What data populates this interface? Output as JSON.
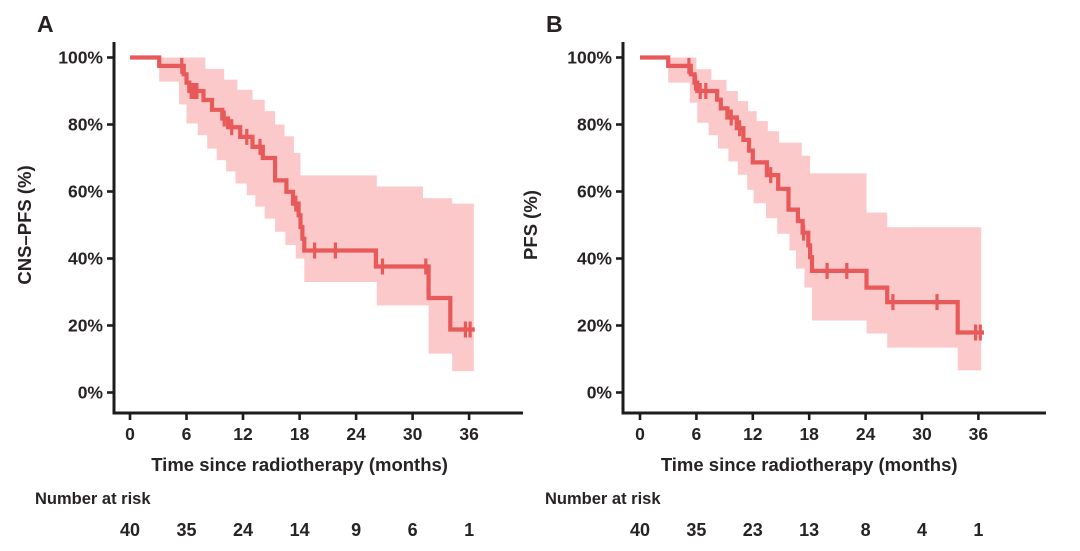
{
  "figure": {
    "curve_color": "#e8595a",
    "band_color": "#fbc9c9",
    "axis_color": "#1c1c1c",
    "text_color": "#272324"
  },
  "chart_data": [
    {
      "type": "line",
      "subtype": "kaplan-meier-step",
      "panel_label": "A",
      "ylabel": "CNS–PFS (%)",
      "xlabel": "Time since radiotherapy (months)",
      "x_ticks": [
        0,
        6,
        12,
        18,
        24,
        30,
        36
      ],
      "y_tick_values": [
        0,
        20,
        40,
        60,
        80,
        100
      ],
      "y_tick_labels": [
        "0%",
        "20%",
        "40%",
        "60%",
        "80%",
        "100%"
      ],
      "xlim": [
        0,
        41
      ],
      "ylim": [
        0,
        100
      ],
      "grid": false,
      "legend": "none",
      "end_time": 36.6,
      "ci_end_time": 36.5,
      "steps": [
        [
          0,
          100
        ],
        [
          3.1,
          97.5
        ],
        [
          5.7,
          95
        ],
        [
          6.0,
          92.5
        ],
        [
          6.3,
          90
        ],
        [
          7.8,
          87.3
        ],
        [
          8.7,
          84.4
        ],
        [
          9.8,
          81.8
        ],
        [
          10.4,
          79.2
        ],
        [
          11.7,
          76.3
        ],
        [
          13.0,
          73.3
        ],
        [
          14.1,
          70.0
        ],
        [
          15.4,
          63.3
        ],
        [
          16.6,
          59.9
        ],
        [
          17.3,
          56.4
        ],
        [
          17.9,
          52.9
        ],
        [
          18.1,
          49.4
        ],
        [
          18.3,
          45.9
        ],
        [
          18.5,
          42.4
        ],
        [
          26.1,
          37.6
        ],
        [
          31.7,
          28.2
        ],
        [
          34.0,
          18.8
        ]
      ],
      "censors": [
        [
          5.5,
          97.5
        ],
        [
          6.5,
          90
        ],
        [
          6.8,
          90
        ],
        [
          7.1,
          90
        ],
        [
          10.0,
          81.8
        ],
        [
          10.8,
          79.2
        ],
        [
          12.4,
          76.3
        ],
        [
          13.8,
          73.3
        ],
        [
          17.6,
          56.4
        ],
        [
          19.6,
          42.4
        ],
        [
          21.8,
          42.4
        ],
        [
          26.8,
          37.6
        ],
        [
          31.4,
          37.6
        ],
        [
          35.6,
          18.8
        ],
        [
          36.1,
          18.8
        ]
      ],
      "ci_upper": [
        [
          3.1,
          100
        ],
        [
          8.0,
          96.6
        ],
        [
          10.0,
          93.4
        ],
        [
          11.4,
          90.4
        ],
        [
          13.0,
          87.4
        ],
        [
          14.3,
          84
        ],
        [
          15.4,
          80
        ],
        [
          16.4,
          76.5
        ],
        [
          17.4,
          71.5
        ],
        [
          18.1,
          64.8
        ],
        [
          26.2,
          61.5
        ],
        [
          31.1,
          58
        ],
        [
          34.2,
          56.4
        ]
      ],
      "ci_lower": [
        [
          3.1,
          92.8
        ],
        [
          5.2,
          86
        ],
        [
          6.0,
          80.3
        ],
        [
          7.2,
          76.8
        ],
        [
          8.2,
          72.8
        ],
        [
          9.2,
          69.3
        ],
        [
          10.2,
          66
        ],
        [
          11.2,
          62.4
        ],
        [
          12.4,
          58.9
        ],
        [
          13.3,
          55.5
        ],
        [
          14.3,
          51.9
        ],
        [
          15.4,
          48
        ],
        [
          16.5,
          44
        ],
        [
          17.6,
          40
        ],
        [
          18.5,
          33
        ],
        [
          26.2,
          26
        ],
        [
          31.7,
          11.6
        ],
        [
          34.2,
          6.4
        ]
      ],
      "number_at_risk_label": "Number at risk",
      "risk_times": [
        0,
        6,
        12,
        18,
        24,
        30,
        36
      ],
      "risk_counts": [
        "40",
        "35",
        "24",
        "14",
        "9",
        "6",
        "1"
      ]
    },
    {
      "type": "line",
      "subtype": "kaplan-meier-step",
      "panel_label": "B",
      "ylabel": "PFS (%)",
      "xlabel": "Time since radiotherapy (months)",
      "x_ticks": [
        0,
        6,
        12,
        18,
        24,
        30,
        36
      ],
      "y_tick_values": [
        0,
        20,
        40,
        60,
        80,
        100
      ],
      "y_tick_labels": [
        "0%",
        "20%",
        "40%",
        "60%",
        "80%",
        "100%"
      ],
      "xlim": [
        0,
        41
      ],
      "ylim": [
        0,
        100
      ],
      "grid": false,
      "legend": "none",
      "end_time": 36.6,
      "ci_end_time": 36.3,
      "steps": [
        [
          0,
          100
        ],
        [
          3.0,
          97.5
        ],
        [
          5.4,
          95
        ],
        [
          5.8,
          92.5
        ],
        [
          6.1,
          90
        ],
        [
          8.2,
          87.4
        ],
        [
          8.6,
          84.8
        ],
        [
          9.3,
          82.1
        ],
        [
          10.3,
          78.9
        ],
        [
          11.0,
          75.4
        ],
        [
          11.6,
          72.2
        ],
        [
          12.0,
          68.7
        ],
        [
          13.5,
          64.9
        ],
        [
          14.7,
          60.8
        ],
        [
          15.8,
          54.6
        ],
        [
          16.8,
          51.2
        ],
        [
          17.3,
          47.7
        ],
        [
          17.9,
          43.9
        ],
        [
          18.1,
          40.4
        ],
        [
          18.3,
          36.3
        ],
        [
          24.1,
          31.3
        ],
        [
          26.3,
          27.0
        ],
        [
          33.8,
          17.9
        ]
      ],
      "censors": [
        [
          5.2,
          97.5
        ],
        [
          5.9,
          92.5
        ],
        [
          6.4,
          90
        ],
        [
          7.0,
          90
        ],
        [
          9.7,
          82.1
        ],
        [
          10.6,
          78.9
        ],
        [
          13.9,
          64.9
        ],
        [
          17.4,
          47.7
        ],
        [
          19.9,
          36.3
        ],
        [
          22.0,
          36.3
        ],
        [
          26.9,
          27.0
        ],
        [
          31.6,
          27.0
        ],
        [
          35.7,
          17.9
        ],
        [
          36.2,
          17.9
        ]
      ],
      "ci_upper": [
        [
          3.0,
          100
        ],
        [
          6.0,
          96.5
        ],
        [
          7.6,
          93.3
        ],
        [
          9.2,
          90
        ],
        [
          10.4,
          87
        ],
        [
          11.5,
          84
        ],
        [
          12.4,
          81
        ],
        [
          13.6,
          78
        ],
        [
          14.8,
          74.6
        ],
        [
          17.2,
          70.7
        ],
        [
          18.1,
          65.4
        ],
        [
          24.1,
          53.7
        ],
        [
          26.3,
          49.3
        ]
      ],
      "ci_lower": [
        [
          3.0,
          92.5
        ],
        [
          5.3,
          86.5
        ],
        [
          6.1,
          80.5
        ],
        [
          7.3,
          76.8
        ],
        [
          8.3,
          72.8
        ],
        [
          9.4,
          69
        ],
        [
          10.4,
          65
        ],
        [
          11.4,
          60.5
        ],
        [
          12.1,
          56.5
        ],
        [
          13.4,
          52
        ],
        [
          14.6,
          47.4
        ],
        [
          15.9,
          42.4
        ],
        [
          16.6,
          37
        ],
        [
          17.5,
          31.3
        ],
        [
          18.3,
          21.5
        ],
        [
          24.1,
          17.6
        ],
        [
          26.3,
          13.4
        ],
        [
          33.8,
          6.6
        ]
      ],
      "number_at_risk_label": "Number at risk",
      "risk_times": [
        0,
        6,
        12,
        18,
        24,
        30,
        36
      ],
      "risk_counts": [
        "40",
        "35",
        "23",
        "13",
        "8",
        "4",
        "1"
      ]
    }
  ]
}
